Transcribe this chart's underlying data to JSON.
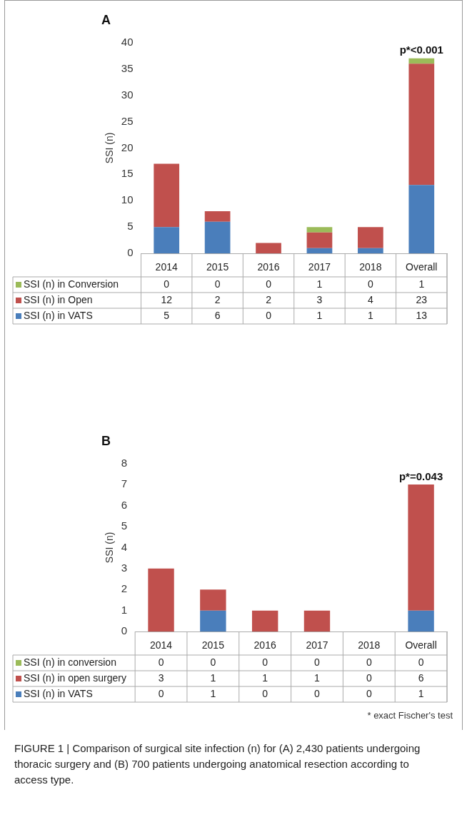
{
  "chart_data": [
    {
      "type": "bar",
      "title": "A",
      "ylabel": "SSI (n)",
      "stacked": true,
      "data_labels": true,
      "legend": "bottom left",
      "grid": false,
      "categories": [
        "2014",
        "2015",
        "2016",
        "2017",
        "2018",
        "Overall"
      ],
      "series": [
        {
          "name": "SSI (n) in VATS",
          "color": "#4a7ebb",
          "values": [
            5,
            6,
            0,
            1,
            1,
            13
          ]
        },
        {
          "name": "SSI (n) in Open",
          "color": "#c0504d",
          "values": [
            12,
            2,
            2,
            3,
            4,
            23
          ]
        },
        {
          "name": "SSI (n) in Conversion",
          "color": "#9bbb59",
          "values": [
            0,
            0,
            0,
            1,
            0,
            1
          ]
        }
      ],
      "ylim": [
        0,
        40
      ],
      "yticks": [
        0,
        5,
        10,
        15,
        20,
        25,
        30,
        35,
        40
      ],
      "annotations": [
        {
          "text": "p*<0.001",
          "x": "Overall",
          "y": 37
        }
      ]
    },
    {
      "type": "bar",
      "title": "B",
      "ylabel": "SSI (n)",
      "stacked": true,
      "data_labels": true,
      "legend": "bottom left",
      "grid": false,
      "categories": [
        "2014",
        "2015",
        "2016",
        "2017",
        "2018",
        "Overall"
      ],
      "series": [
        {
          "name": "SSI (n) in VATS",
          "color": "#4a7ebb",
          "values": [
            0,
            1,
            0,
            0,
            0,
            1
          ]
        },
        {
          "name": "SSI (n) in open surgery",
          "color": "#c0504d",
          "values": [
            3,
            1,
            1,
            1,
            0,
            6
          ]
        },
        {
          "name": "SSI (n) in conversion",
          "color": "#9bbb59",
          "values": [
            0,
            0,
            0,
            0,
            0,
            0
          ]
        }
      ],
      "ylim": [
        0,
        8
      ],
      "yticks": [
        0,
        1,
        2,
        3,
        4,
        5,
        6,
        7,
        8
      ],
      "annotations": [
        {
          "text": "p*=0.043",
          "x": "Overall",
          "y": 7
        },
        "* exact Fischer's test",
        "FIGURE 1 | Comparison of surgical site infection (n) for (A) 2,430 patients undergoing thoracic surgery and (B) 700 patients undergoing anatomical resection according to access type."
      ]
    }
  ]
}
